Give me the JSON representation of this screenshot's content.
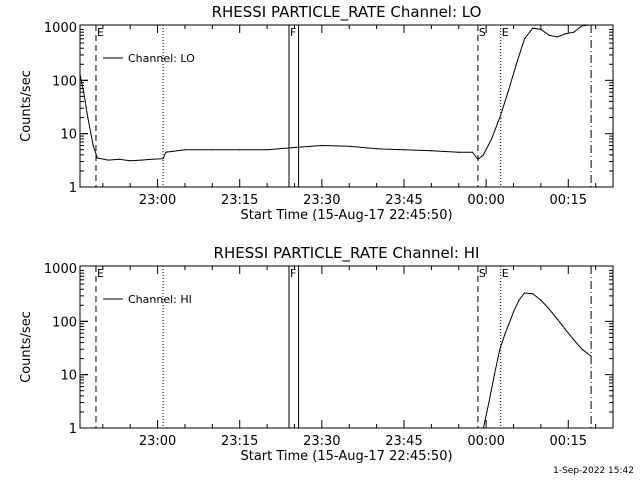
{
  "footer": {
    "timestamp": "1-Sep-2022 15:42"
  },
  "chart_data": [
    {
      "type": "line",
      "title": "RHESSI PARTICLE_RATE Channel: LO",
      "ylabel": "Counts/sec",
      "xlabel": "Start Time (15-Aug-17 22:45:50)",
      "yscale": "log",
      "ylim": [
        1,
        1000
      ],
      "ytick_labels": [
        "1",
        "10",
        "100",
        "1000"
      ],
      "xtick_labels": [
        "23:00",
        "23:15",
        "23:30",
        "23:45",
        "00:00",
        "00:15"
      ],
      "legend": "Channel: LO",
      "legend_position": "top-left",
      "markers": [
        {
          "label": "E",
          "style": "dashed",
          "time": "22:48:45"
        },
        {
          "label": "",
          "style": "dotted",
          "time": "23:01:00"
        },
        {
          "label": "F",
          "style": "box",
          "time_start": "23:24:00",
          "time_end": "23:25:45"
        },
        {
          "label": "S",
          "style": "dashed",
          "time": "23:58:30"
        },
        {
          "label": "E",
          "style": "dotted",
          "time": "00:02:40"
        },
        {
          "label": "",
          "style": "dashdot",
          "time": "00:19:10"
        }
      ],
      "series": [
        {
          "name": "Channel: LO",
          "x": [
            "22:45:50",
            "22:46:30",
            "22:47:15",
            "22:48:15",
            "22:49:00",
            "22:51:00",
            "22:53:00",
            "22:55:00",
            "22:57:00",
            "22:59:00",
            "23:01:00",
            "23:01:30",
            "23:05:00",
            "23:10:00",
            "23:15:00",
            "23:20:00",
            "23:25:00",
            "23:30:00",
            "23:35:00",
            "23:40:00",
            "23:45:00",
            "23:50:00",
            "23:55:00",
            "23:57:30",
            "23:58:30",
            "23:59:30",
            "00:01:00",
            "00:02:30",
            "00:04:00",
            "00:05:30",
            "00:07:00",
            "00:08:30",
            "00:10:00",
            "00:11:30",
            "00:13:00",
            "00:14:30",
            "00:16:00",
            "00:17:30",
            "00:19:10"
          ],
          "values": [
            130,
            60,
            20,
            6,
            3.5,
            3.2,
            3.3,
            3.1,
            3.2,
            3.3,
            3.4,
            4.5,
            5,
            5,
            5,
            5,
            5.5,
            6,
            5.8,
            5.2,
            5,
            4.8,
            4.5,
            4.5,
            3.3,
            4,
            8,
            20,
            60,
            200,
            600,
            950,
            900,
            700,
            650,
            750,
            800,
            1050,
            1100
          ]
        }
      ]
    },
    {
      "type": "line",
      "title": "RHESSI PARTICLE_RATE Channel: HI",
      "ylabel": "Counts/sec",
      "xlabel": "Start Time (15-Aug-17 22:45:50)",
      "yscale": "log",
      "ylim": [
        1,
        1000
      ],
      "ytick_labels": [
        "1",
        "10",
        "100",
        "1000"
      ],
      "xtick_labels": [
        "23:00",
        "23:15",
        "23:30",
        "23:45",
        "00:00",
        "00:15"
      ],
      "legend": "Channel: HI",
      "legend_position": "top-left",
      "markers": [
        {
          "label": "E",
          "style": "dashed",
          "time": "22:48:45"
        },
        {
          "label": "",
          "style": "dotted",
          "time": "23:01:00"
        },
        {
          "label": "F",
          "style": "box",
          "time_start": "23:24:00",
          "time_end": "23:25:45"
        },
        {
          "label": "S",
          "style": "dashed",
          "time": "23:58:30"
        },
        {
          "label": "E",
          "style": "dotted",
          "time": "00:02:40"
        },
        {
          "label": "",
          "style": "dashdot",
          "time": "00:19:10"
        }
      ],
      "series": [
        {
          "name": "Channel: HI",
          "x": [
            "23:59:30",
            "00:00:30",
            "00:01:30",
            "00:02:30",
            "00:03:30",
            "00:05:00",
            "00:06:00",
            "00:07:00",
            "00:08:30",
            "00:10:00",
            "00:11:30",
            "00:13:00",
            "00:14:30",
            "00:16:00",
            "00:17:30",
            "00:18:30",
            "00:19:10"
          ],
          "values": [
            1,
            3,
            10,
            30,
            60,
            150,
            250,
            340,
            330,
            250,
            170,
            110,
            70,
            45,
            30,
            25,
            22
          ]
        }
      ]
    }
  ]
}
